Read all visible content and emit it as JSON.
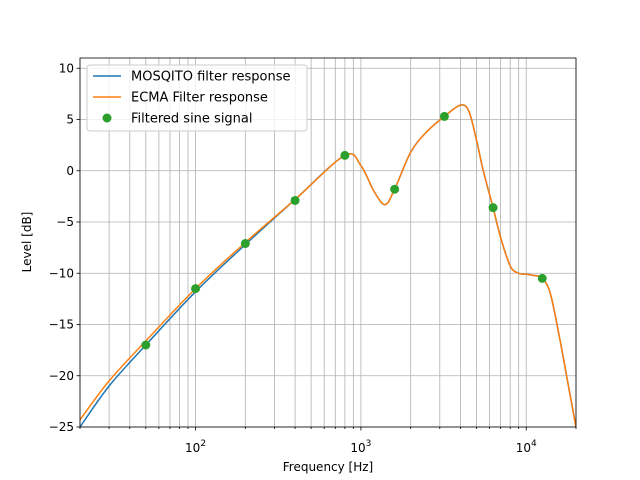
{
  "chart_data": {
    "type": "line",
    "xlabel": "Frequency [Hz]",
    "ylabel": "Level [dB]",
    "xscale": "log",
    "xlim": [
      20,
      20000
    ],
    "ylim": [
      -25,
      11
    ],
    "grid": "both (major and minor)",
    "legend_position": "top-left",
    "y_ticks": [
      10,
      5,
      0,
      -5,
      -10,
      -15,
      -20,
      -25
    ],
    "x_ticks": [
      {
        "base": "10",
        "exp": "2",
        "value": 100
      },
      {
        "base": "10",
        "exp": "3",
        "value": 1000
      },
      {
        "base": "10",
        "exp": "4",
        "value": 10000
      }
    ],
    "series": [
      {
        "name": "MOSQITO filter response",
        "kind": "line",
        "color": "#1f77b4",
        "x": [
          20,
          30,
          50,
          100,
          200,
          400,
          800,
          1000,
          1200,
          1400,
          1600,
          2000,
          2500,
          3200,
          4000,
          4500,
          5000,
          5500,
          6300,
          7000,
          8000,
          9000,
          10000,
          11000,
          12500,
          14000,
          16000,
          18000,
          20000
        ],
        "y": [
          -25,
          -21,
          -17,
          -11.8,
          -7.2,
          -2.8,
          1.5,
          0.5,
          -2,
          -3.3,
          -1.8,
          1.8,
          3.8,
          5.3,
          6.4,
          5.8,
          3,
          0,
          -3.6,
          -6.5,
          -9.3,
          -10,
          -10.1,
          -10.2,
          -10.5,
          -12,
          -16.5,
          -21,
          -25
        ]
      },
      {
        "name": "ECMA Filter response",
        "kind": "line",
        "color": "#ff7f0e",
        "x": [
          20,
          30,
          50,
          100,
          200,
          400,
          800,
          1000,
          1200,
          1400,
          1600,
          2000,
          2500,
          3200,
          4000,
          4500,
          5000,
          5500,
          6300,
          7000,
          8000,
          9000,
          10000,
          11000,
          12500,
          14000,
          16000,
          18000,
          20000
        ],
        "y": [
          -24.3,
          -20.5,
          -16.6,
          -11.5,
          -7,
          -2.8,
          1.5,
          0.5,
          -2,
          -3.3,
          -1.8,
          1.8,
          3.8,
          5.3,
          6.4,
          5.8,
          3,
          0,
          -3.6,
          -6.5,
          -9.3,
          -10,
          -10.1,
          -10.2,
          -10.5,
          -12,
          -16.5,
          -21,
          -25
        ]
      },
      {
        "name": "Filtered sine signal",
        "kind": "markers",
        "color": "#2ca02c",
        "x": [
          50,
          100,
          200,
          400,
          800,
          1600,
          3200,
          6300,
          12500
        ],
        "y": [
          -17,
          -11.5,
          -7.1,
          -2.9,
          1.5,
          -1.8,
          5.3,
          -3.6,
          -10.5
        ]
      }
    ]
  }
}
